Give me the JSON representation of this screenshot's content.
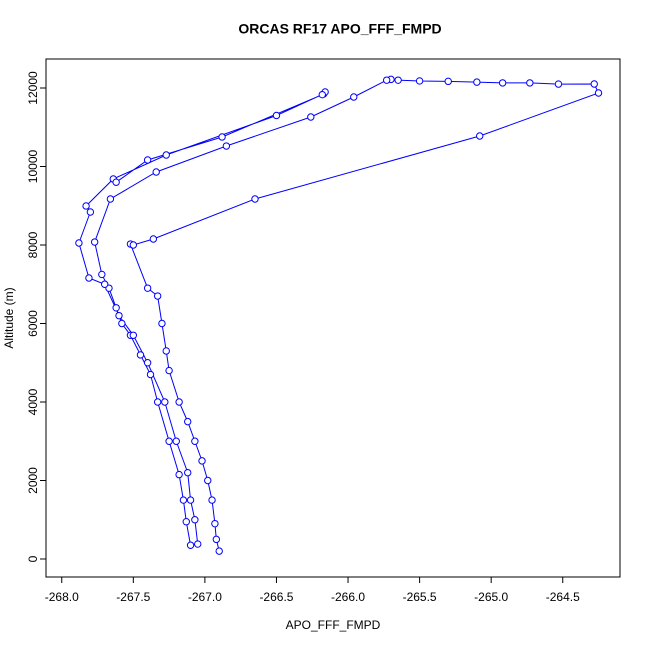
{
  "chart_data": {
    "type": "line",
    "title": "ORCAS RF17 APO_FFF_FMPD",
    "x_label": "APO_FFF_FMPD",
    "y_label": "Altitude (m)",
    "x": [
      -266.9,
      -266.92,
      -266.93,
      -266.95,
      -266.98,
      -267.02,
      -267.07,
      -267.12,
      -267.18,
      -267.25,
      -267.27,
      -267.3,
      -267.33,
      -267.4,
      -267.52,
      -267.5,
      -267.36,
      -266.65,
      -265.08,
      -264.25,
      -264.28,
      -264.53,
      -264.73,
      -264.92,
      -265.1,
      -265.3,
      -265.5,
      -265.65,
      -265.7,
      -265.73,
      -265.96,
      -266.26,
      -266.85,
      -267.34,
      -267.66,
      -267.77,
      -267.72,
      -267.67,
      -267.62,
      -267.58,
      -267.52,
      -267.45,
      -267.38,
      -267.33,
      -267.25,
      -267.18,
      -267.15,
      -267.13,
      -267.1,
      -267.05,
      -267.07,
      -267.1,
      -267.12,
      -267.2,
      -267.28,
      -267.4,
      -267.5,
      -267.6,
      -267.7,
      -267.81,
      -267.88,
      -267.8,
      -267.83,
      -267.64,
      -267.27,
      -266.5,
      -266.17,
      -266.16,
      -266.18,
      -266.88,
      -267.4,
      -267.62
    ],
    "series": [
      {
        "name": "APO_FFF_FMPD",
        "color": "#0000ff",
        "values": [
          200,
          500,
          900,
          1500,
          2000,
          2500,
          3000,
          3500,
          4000,
          4800,
          5300,
          6000,
          6700,
          6900,
          8025,
          8000,
          8153,
          9172,
          10777,
          11873,
          12102,
          12100,
          12130,
          12130,
          12150,
          12170,
          12180,
          12200,
          12220,
          12200,
          11771,
          11261,
          10522,
          9860,
          9172,
          8076,
          7250,
          6900,
          6400,
          6000,
          5700,
          5200,
          4700,
          4000,
          3000,
          2150,
          1500,
          950,
          350,
          380,
          1000,
          1500,
          2200,
          3000,
          4000,
          5000,
          5700,
          6200,
          7000,
          7159,
          8051,
          8841,
          8994,
          9682,
          10293,
          11300,
          11850,
          11900,
          11830,
          10752,
          10166,
          9600
        ]
      }
    ],
    "xlim": [
      -268.11,
      -264.1
    ],
    "ylim": [
      -459,
      12739
    ],
    "xticks": [
      {
        "value": -268,
        "label": "-268.0"
      },
      -267.5,
      {
        "value": -267,
        "label": "-267.0"
      },
      -266.5,
      {
        "value": -266,
        "label": "-266.0"
      },
      -265.5,
      {
        "value": -265,
        "label": "-265.0"
      },
      -264.5
    ],
    "yticks": [
      0,
      2000,
      4000,
      6000,
      8000,
      10000,
      12000
    ],
    "grid": false,
    "marker": "open-circle"
  }
}
